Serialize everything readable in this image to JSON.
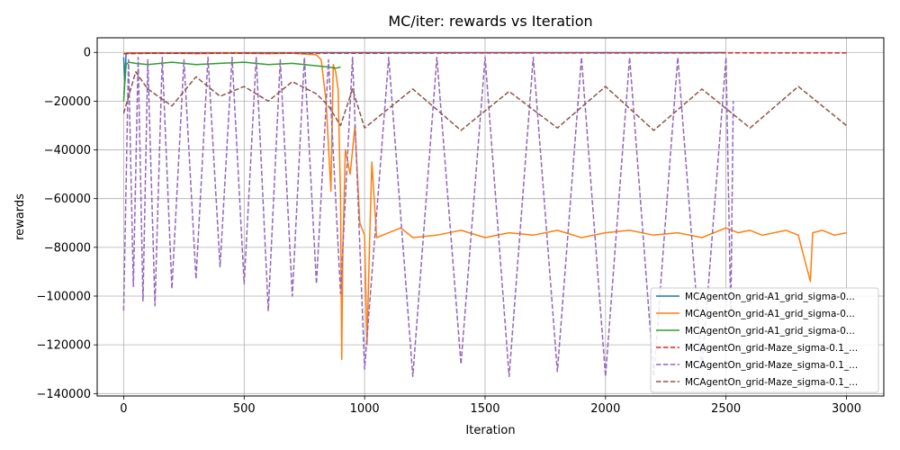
{
  "chart_data": {
    "type": "line",
    "title": "MC/iter: rewards vs Iteration",
    "xlabel": "Iteration",
    "ylabel": "rewards",
    "xlim": [
      -110,
      3155
    ],
    "ylim": [
      -141000,
      6000
    ],
    "xticks": [
      0,
      500,
      1000,
      1500,
      2000,
      2500,
      3000
    ],
    "xtick_labels": [
      "0",
      "500",
      "1000",
      "1500",
      "2000",
      "2500",
      "3000"
    ],
    "yticks": [
      0,
      -20000,
      -40000,
      -60000,
      -80000,
      -100000,
      -120000,
      -140000
    ],
    "ytick_labels": [
      "0",
      "−20000",
      "−40000",
      "−60000",
      "−80000",
      "−100000",
      "−120000",
      "−140000"
    ],
    "grid": true,
    "legend_position": "lower-right",
    "series": [
      {
        "name": "MCAgentOn_grid-A1_grid_sigma-0...",
        "color": "#1f77b4",
        "dash": "solid",
        "x": [
          0,
          5,
          10,
          20,
          100,
          500,
          1000,
          1500,
          2000,
          2300,
          2400,
          2500
        ],
        "y": [
          -2000,
          -12000,
          -300,
          -200,
          -150,
          -120,
          -100,
          -100,
          -100,
          -100,
          -100,
          -100
        ]
      },
      {
        "name": "MCAgentOn_grid-A1_grid_sigma-0...",
        "color": "#ff7f0e",
        "dash": "solid",
        "x": [
          0,
          50,
          100,
          200,
          300,
          400,
          500,
          600,
          700,
          800,
          820,
          840,
          860,
          870,
          880,
          890,
          900,
          905,
          910,
          920,
          940,
          960,
          980,
          1000,
          1010,
          1020,
          1030,
          1050,
          1100,
          1150,
          1200,
          1300,
          1400,
          1500,
          1600,
          1700,
          1800,
          1900,
          2000,
          2100,
          2200,
          2300,
          2400,
          2500,
          2550,
          2600,
          2650,
          2700,
          2750,
          2800,
          2850,
          2860,
          2900,
          2950,
          3000
        ],
        "y": [
          -500,
          -300,
          -400,
          -300,
          -500,
          -300,
          -400,
          -500,
          -300,
          -1000,
          -3000,
          -20000,
          -57000,
          -5000,
          -8000,
          -15000,
          -60000,
          -126000,
          -80000,
          -40000,
          -50000,
          -30000,
          -70000,
          -75000,
          -120000,
          -80000,
          -45000,
          -76000,
          -74000,
          -72000,
          -76000,
          -75000,
          -73000,
          -76000,
          -74000,
          -75000,
          -73000,
          -76000,
          -74000,
          -73000,
          -75000,
          -74000,
          -76000,
          -72000,
          -74000,
          -73000,
          -75000,
          -74000,
          -73000,
          -75000,
          -94000,
          -74000,
          -73000,
          -75000,
          -74000
        ]
      },
      {
        "name": "MCAgentOn_grid-A1_grid_sigma-0...",
        "color": "#2ca02c",
        "dash": "solid",
        "x": [
          0,
          5,
          10,
          20,
          50,
          100,
          200,
          300,
          400,
          500,
          600,
          700,
          800,
          850,
          880,
          900
        ],
        "y": [
          -20000,
          -12000,
          -5000,
          -4000,
          -4500,
          -5000,
          -4000,
          -5000,
          -4500,
          -4000,
          -5000,
          -4500,
          -5500,
          -6000,
          -6500,
          -6000
        ]
      },
      {
        "name": "MCAgentOn_grid-Maze_sigma-0.1_...",
        "color": "#d62728",
        "dash": "dashed",
        "x": [
          0,
          100,
          500,
          1000,
          1500,
          2000,
          2500,
          3000
        ],
        "y": [
          -500,
          -400,
          -300,
          -300,
          -250,
          -250,
          -200,
          -200
        ]
      },
      {
        "name": "MCAgentOn_grid-Maze_sigma-0.1_...",
        "color": "#9467bd",
        "dash": "dashed",
        "x": [
          0,
          20,
          40,
          60,
          80,
          100,
          130,
          160,
          200,
          250,
          300,
          350,
          400,
          450,
          500,
          550,
          600,
          650,
          700,
          750,
          800,
          850,
          900,
          950,
          1000,
          1100,
          1200,
          1300,
          1400,
          1500,
          1600,
          1700,
          1800,
          1900,
          2000,
          2100,
          2200,
          2300,
          2400,
          2500,
          2520,
          2530
        ],
        "y": [
          -106000,
          -3000,
          -96000,
          -2000,
          -102000,
          -3000,
          -104000,
          -2000,
          -97000,
          -3000,
          -93000,
          -2000,
          -88000,
          -2000,
          -95000,
          -2000,
          -106000,
          -3000,
          -100000,
          -2000,
          -95000,
          -3000,
          -99000,
          -2000,
          -130000,
          -2000,
          -133000,
          -2000,
          -128000,
          -2000,
          -133000,
          -2000,
          -131000,
          -2000,
          -133000,
          -2000,
          -133000,
          -2000,
          -130000,
          -2000,
          -108000,
          -20000
        ]
      },
      {
        "name": "MCAgentOn_grid-Maze_sigma-0.1_...",
        "color": "#8c564b",
        "dash": "dashed",
        "x": [
          0,
          50,
          100,
          200,
          300,
          400,
          500,
          600,
          700,
          800,
          850,
          900,
          950,
          1000,
          1200,
          1400,
          1600,
          1800,
          2000,
          2200,
          2400,
          2600,
          2800,
          3000
        ],
        "y": [
          -25000,
          -8000,
          -15000,
          -22000,
          -10000,
          -18000,
          -14000,
          -20000,
          -12000,
          -17000,
          -22000,
          -30000,
          -15000,
          -31000,
          -15000,
          -32000,
          -16000,
          -31000,
          -14000,
          -32000,
          -15000,
          -31000,
          -14000,
          -30000
        ]
      }
    ]
  }
}
